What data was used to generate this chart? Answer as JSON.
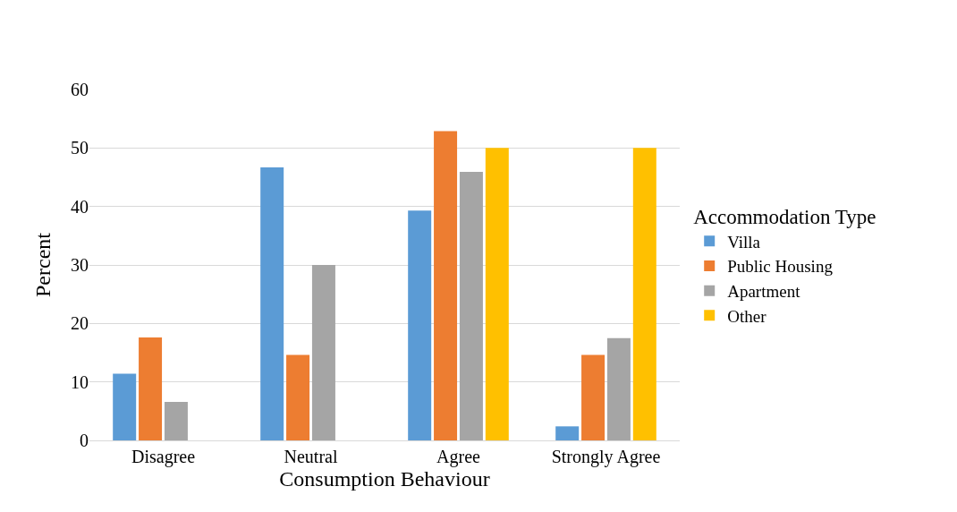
{
  "chart_data": {
    "type": "bar",
    "xlabel": "Consumption Behaviour",
    "ylabel": "Percent",
    "legend_title": "Accommodation Type",
    "categories": [
      "Disagree",
      "Neutral",
      "Agree",
      "Strongly Agree"
    ],
    "series": [
      {
        "name": "Villa",
        "color": "#5b9bd5",
        "values": [
          11.4,
          46.7,
          39.3,
          2.4
        ]
      },
      {
        "name": "Public Housing",
        "color": "#ed7d31",
        "values": [
          17.6,
          14.6,
          52.9,
          14.6
        ]
      },
      {
        "name": "Apartment",
        "color": "#a5a5a5",
        "values": [
          6.6,
          30,
          45.9,
          17.5
        ]
      },
      {
        "name": "Other",
        "color": "#ffc000",
        "values": [
          0,
          0,
          50,
          50
        ]
      }
    ],
    "ylim": [
      0,
      60
    ],
    "yticks": [
      0,
      10,
      20,
      30,
      40,
      50,
      60
    ],
    "grid": "y",
    "legend": "right"
  }
}
